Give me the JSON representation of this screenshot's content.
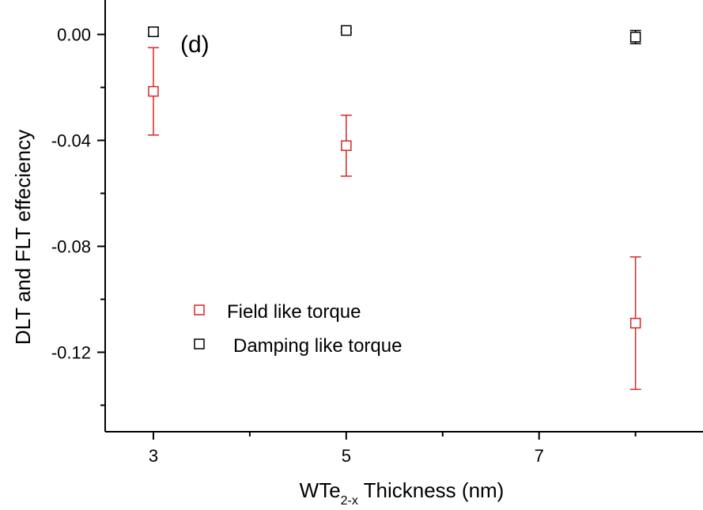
{
  "chart_data": {
    "type": "scatter",
    "panel_label": "(d)",
    "xlabel": {
      "pre": "WTe",
      "sub": "2-x",
      "post": " Thickness (nm)"
    },
    "ylabel": "DLT and FLT effeciency",
    "xlim": [
      2.5,
      8.7
    ],
    "ylim": [
      -0.15,
      0.013
    ],
    "x_ticks": [
      3,
      4,
      5,
      6,
      7,
      8
    ],
    "x_tick_labels": [
      "3",
      "",
      "5",
      "",
      "7",
      ""
    ],
    "y_ticks": [
      0.0,
      -0.02,
      -0.04,
      -0.06,
      -0.08,
      -0.1,
      -0.12,
      -0.14
    ],
    "y_tick_labels": [
      "0.00",
      "",
      "-0.04",
      "",
      "-0.08",
      "",
      "-0.12",
      ""
    ],
    "legend_position": "center-left",
    "series": [
      {
        "name": "Field like torque",
        "color": "#d62728",
        "marker": "open-square",
        "x": [
          3,
          5,
          8
        ],
        "y": [
          -0.0215,
          -0.042,
          -0.109
        ],
        "err_low": [
          0.0165,
          0.0115,
          0.025
        ],
        "err_high": [
          0.0165,
          0.0115,
          0.025
        ]
      },
      {
        "name": "Damping like torque",
        "color": "#000000",
        "marker": "open-square",
        "x": [
          3,
          5,
          8
        ],
        "y": [
          0.001,
          0.0015,
          -0.001
        ],
        "err_low": [
          0.0015,
          0.0008,
          0.0025
        ],
        "err_high": [
          0.0015,
          0.0008,
          0.0025
        ]
      }
    ]
  }
}
